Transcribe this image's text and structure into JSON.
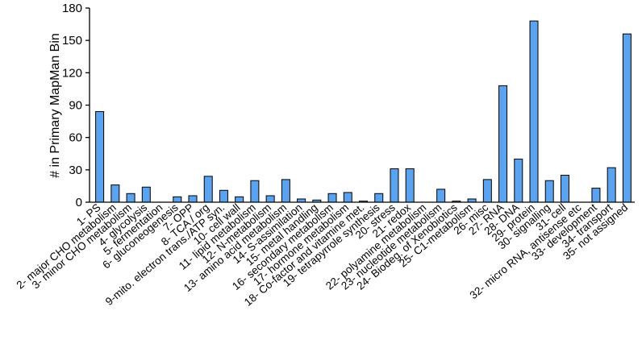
{
  "chart_data": {
    "type": "bar",
    "title": "",
    "xlabel": "",
    "ylabel": "# in Primary MapMan Bin",
    "ylim": [
      0,
      180
    ],
    "yticks": [
      0,
      30,
      60,
      90,
      120,
      150,
      180
    ],
    "grid": false,
    "legend": "none",
    "bar_color": "#5ba3ee",
    "bar_edge_color": "#000000",
    "categories": [
      "1- PS",
      "2- major CHO metabolism",
      "3- minor CHO metabolism",
      "4- glycolysis",
      "5- fermentation",
      "6- gluconeogenesis",
      "7- OPP",
      "8- TCA / org",
      "9-mito. electron trans./ATP syn.",
      "10- cell wall",
      "11- lipid metabolism",
      "12- N-metabolism",
      "13- amino acid metabolism",
      "14- S-assimilation",
      "15- metal handling",
      "16- secondary metabolism",
      "17- hormone metabolism",
      "18- Co-factor and vitamine met.",
      "19- tetrapyrrole synthesis",
      "20- stress",
      "21- redox",
      "22- polyamine metabolism",
      "23- nucleotide metabolism",
      "24- Biodeg. of Xenobiotics",
      "25- C1-metabolism",
      "26- misc",
      "27- RNA",
      "28- DNA",
      "29- protein",
      "30- signalling",
      "31- cell",
      "32- micro RNA, antisense etc",
      "33- development",
      "34- transport",
      "35- not assigned"
    ],
    "values": [
      84,
      16,
      8,
      14,
      0,
      5,
      6,
      24,
      11,
      5,
      20,
      6,
      21,
      3,
      2,
      8,
      9,
      1,
      8,
      31,
      31,
      0,
      12,
      1,
      3,
      21,
      108,
      40,
      168,
      20,
      25,
      0,
      13,
      32,
      156
    ]
  }
}
